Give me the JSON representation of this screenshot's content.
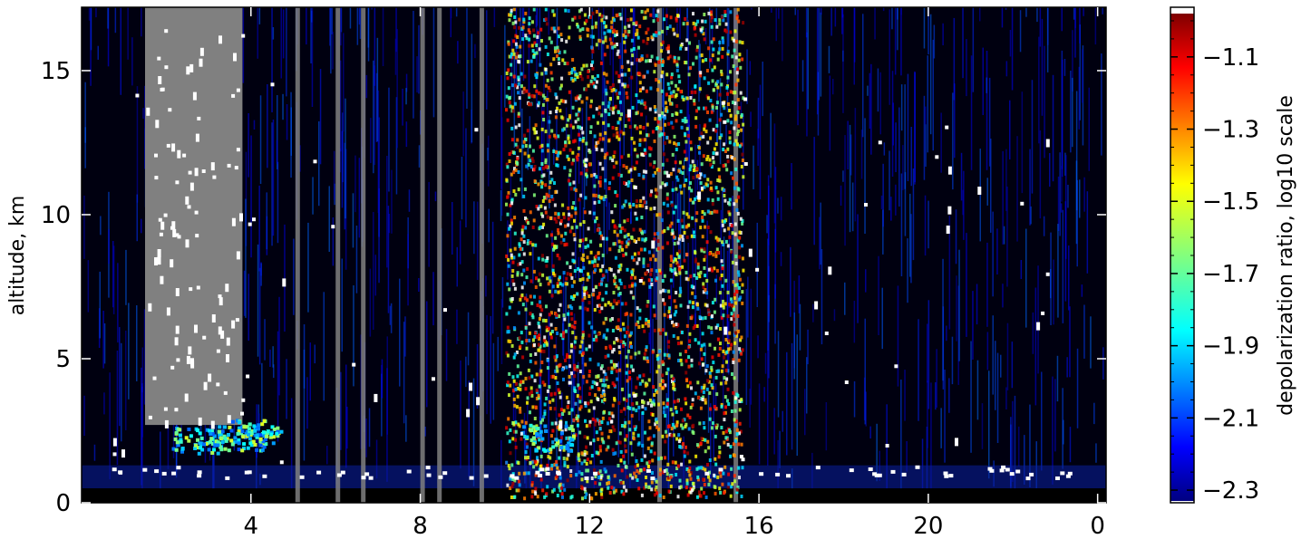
{
  "chart_data": {
    "type": "heatmap",
    "title": "",
    "xlabel": "",
    "ylabel": "altitude, km",
    "x_ticks": [
      "4",
      "8",
      "12",
      "16",
      "20",
      "0"
    ],
    "y_ticks": [
      0,
      5,
      10,
      15
    ],
    "ylim": [
      0,
      17.2
    ],
    "grid": false,
    "colormap": "jet",
    "missing_color": "#808080",
    "colorbar": {
      "label": "depolarization ratio, log10 scale",
      "ticks": [
        -1.1,
        -1.3,
        -1.5,
        -1.7,
        -1.9,
        -2.1,
        -2.3
      ],
      "range": [
        -2.33,
        -0.98
      ]
    },
    "features": {
      "boundary_layer_altitude_km": [
        0.5,
        2.6
      ],
      "dense_noisy_region_x": [
        10,
        16
      ],
      "missing_data_region_x": [
        1.5,
        3.8
      ]
    }
  }
}
